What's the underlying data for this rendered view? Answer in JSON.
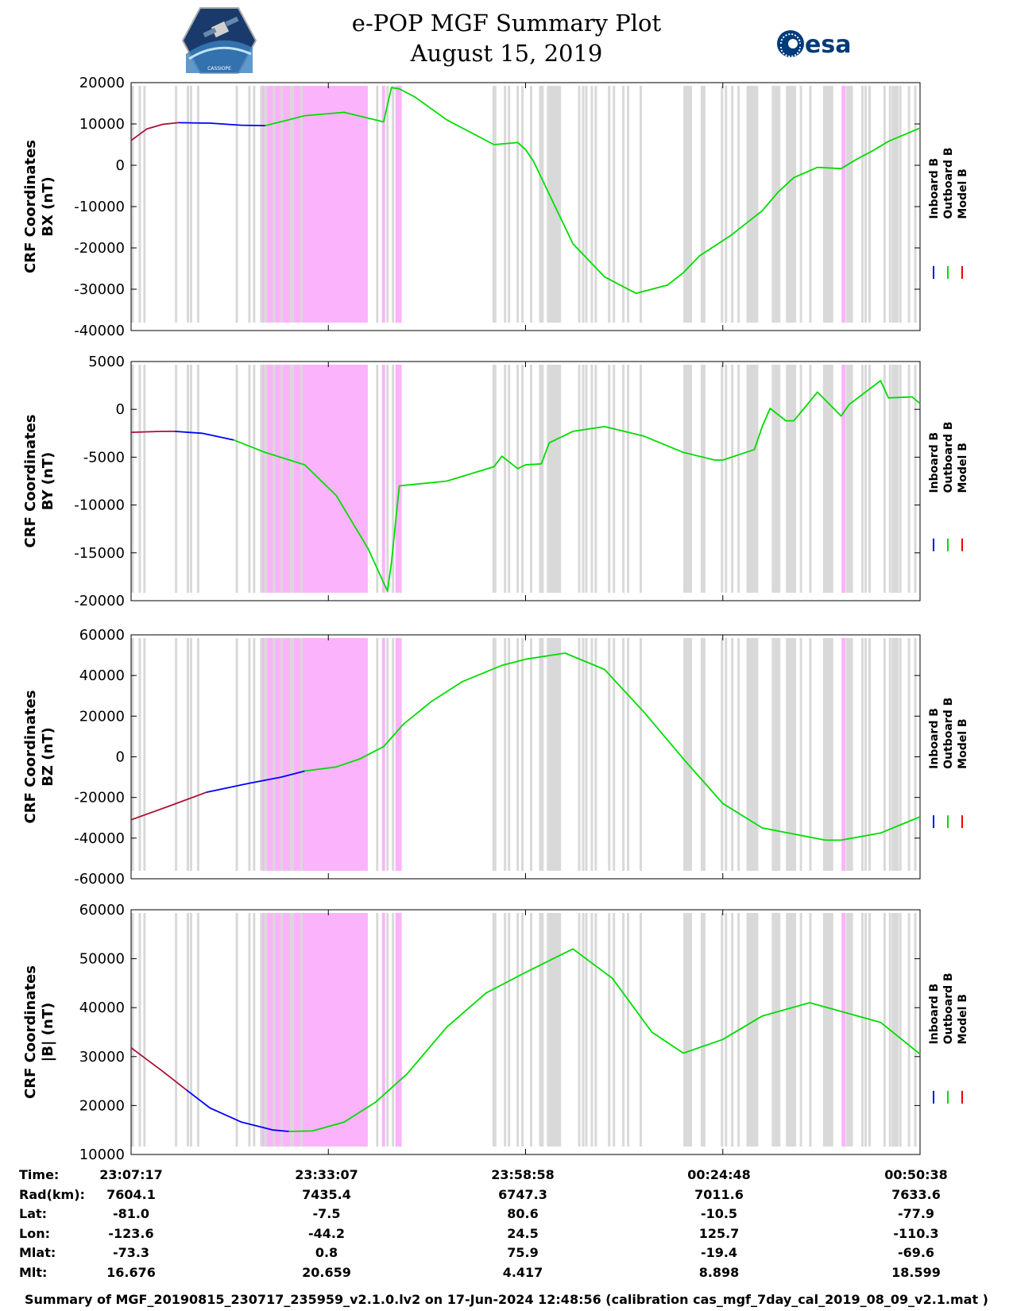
{
  "title": {
    "line1": "e-POP MGF Summary Plot",
    "line2": "August 15, 2019"
  },
  "logos": {
    "epop_caption": "CASSIOPE",
    "esa_text": "esa"
  },
  "legend": {
    "inboard": "Inboard B",
    "outboard": "Outboard B",
    "model": "Model B",
    "colors": {
      "inboard": "#0000ff",
      "outboard": "#00dd00",
      "model": "#ee0000"
    }
  },
  "colors": {
    "gray_band": "#d9d9d9",
    "magenta_band": "#fbb4fb",
    "model_trace": "#aa1133"
  },
  "chart_data": [
    {
      "type": "line",
      "id": "bx",
      "ylabel_line1": "CRF Coordinates",
      "ylabel_line2": "BX (nT)",
      "ylim": [
        -40000,
        20000
      ],
      "yticks": [
        20000,
        10000,
        0,
        -10000,
        -20000,
        -30000,
        -40000
      ],
      "ytick_labels": [
        "20000",
        "10000",
        "0",
        "-10000",
        "-20000",
        "-30000",
        "-40000"
      ],
      "series": [
        {
          "name": "Model B",
          "color": "model",
          "x": [
            0,
            0.02,
            0.04,
            0.06
          ],
          "y": [
            6000,
            8800,
            9900,
            10300
          ]
        },
        {
          "name": "Inboard B",
          "color": "inboard",
          "x": [
            0.06,
            0.1,
            0.14,
            0.17
          ],
          "y": [
            10300,
            10200,
            9700,
            9600
          ]
        },
        {
          "name": "Outboard B",
          "color": "outboard",
          "x": [
            0.17,
            0.2,
            0.22,
            0.27,
            0.32,
            0.33,
            0.34,
            0.36,
            0.4,
            0.46,
            0.49,
            0.5,
            0.51,
            0.52,
            0.53,
            0.54,
            0.55,
            0.56,
            0.6,
            0.64,
            0.68,
            0.7,
            0.72,
            0.76,
            0.8,
            0.82,
            0.84,
            0.87,
            0.9,
            0.92,
            0.94,
            0.96,
            1.0
          ],
          "y": [
            9600,
            11000,
            12000,
            12800,
            10500,
            18800,
            18500,
            16500,
            11000,
            5000,
            5500,
            3800,
            1000,
            -3000,
            -7000,
            -11000,
            -15000,
            -19000,
            -27000,
            -31000,
            -29000,
            -26000,
            -22000,
            -17000,
            -11000,
            -6500,
            -3000,
            -500,
            -800,
            1500,
            3500,
            5800,
            9000
          ]
        }
      ]
    },
    {
      "type": "line",
      "id": "by",
      "ylabel_line1": "CRF Coordinates",
      "ylabel_line2": "BY (nT)",
      "ylim": [
        -20000,
        5000
      ],
      "yticks": [
        5000,
        0,
        -5000,
        -10000,
        -15000,
        -20000
      ],
      "ytick_labels": [
        "5000",
        "0",
        "-5000",
        "-10000",
        "-15000",
        "-20000"
      ],
      "series": [
        {
          "name": "Model B",
          "color": "model",
          "x": [
            0,
            0.04,
            0.055
          ],
          "y": [
            -2400,
            -2300,
            -2300
          ]
        },
        {
          "name": "Inboard B",
          "color": "inboard",
          "x": [
            0.055,
            0.09,
            0.13
          ],
          "y": [
            -2300,
            -2500,
            -3200
          ]
        },
        {
          "name": "Outboard B",
          "color": "outboard",
          "x": [
            0.13,
            0.17,
            0.22,
            0.26,
            0.3,
            0.325,
            0.33,
            0.34,
            0.4,
            0.46,
            0.47,
            0.49,
            0.5,
            0.52,
            0.53,
            0.56,
            0.6,
            0.65,
            0.7,
            0.74,
            0.75,
            0.79,
            0.8,
            0.81,
            0.83,
            0.84,
            0.87,
            0.9,
            0.91,
            0.95,
            0.96,
            0.99,
            1.0
          ],
          "y": [
            -3200,
            -4500,
            -5800,
            -9000,
            -14500,
            -19000,
            -16000,
            -8000,
            -7500,
            -6000,
            -4900,
            -6200,
            -5800,
            -5700,
            -3500,
            -2300,
            -1800,
            -2800,
            -4500,
            -5300,
            -5300,
            -4200,
            -1800,
            100,
            -1200,
            -1200,
            1800,
            -700,
            500,
            3000,
            1200,
            1300,
            600
          ]
        }
      ]
    },
    {
      "type": "line",
      "id": "bz",
      "ylabel_line1": "CRF Coordinates",
      "ylabel_line2": "BZ (nT)",
      "ylim": [
        -60000,
        60000
      ],
      "yticks": [
        60000,
        40000,
        20000,
        0,
        -20000,
        -40000,
        -60000
      ],
      "ytick_labels": [
        "60000",
        "40000",
        "20000",
        "0",
        "-20000",
        "-40000",
        "-60000"
      ],
      "series": [
        {
          "name": "Model B",
          "color": "model",
          "x": [
            0,
            0.05,
            0.095
          ],
          "y": [
            -31000,
            -24000,
            -17500
          ]
        },
        {
          "name": "Inboard B",
          "color": "inboard",
          "x": [
            0.095,
            0.15,
            0.19,
            0.22
          ],
          "y": [
            -17500,
            -13000,
            -10000,
            -7000
          ]
        },
        {
          "name": "Outboard B",
          "color": "outboard",
          "x": [
            0.22,
            0.26,
            0.29,
            0.32,
            0.345,
            0.38,
            0.42,
            0.47,
            0.5,
            0.55,
            0.6,
            0.65,
            0.7,
            0.75,
            0.8,
            0.88,
            0.9,
            0.95,
            1.0
          ],
          "y": [
            -7000,
            -5000,
            -1000,
            5000,
            16000,
            27000,
            37000,
            45000,
            48000,
            51000,
            43000,
            22000,
            -1000,
            -23000,
            -35000,
            -41000,
            -41000,
            -37500,
            -29500
          ]
        }
      ]
    },
    {
      "type": "line",
      "id": "bmag",
      "ylabel_line1": "CRF Coordinates",
      "ylabel_line2": "|B| (nT)",
      "ylim": [
        10000,
        60000
      ],
      "yticks": [
        60000,
        50000,
        40000,
        30000,
        20000,
        10000
      ],
      "ytick_labels": [
        "60000",
        "50000",
        "40000",
        "30000",
        "20000",
        "10000"
      ],
      "series": [
        {
          "name": "Model B",
          "color": "model",
          "x": [
            0,
            0.04,
            0.07
          ],
          "y": [
            31800,
            27000,
            23200
          ]
        },
        {
          "name": "Inboard B",
          "color": "inboard",
          "x": [
            0.07,
            0.1,
            0.14,
            0.18,
            0.2
          ],
          "y": [
            23200,
            19500,
            16600,
            15000,
            14700
          ]
        },
        {
          "name": "Outboard B",
          "color": "outboard",
          "x": [
            0.2,
            0.23,
            0.27,
            0.31,
            0.35,
            0.4,
            0.45,
            0.5,
            0.56,
            0.61,
            0.66,
            0.7,
            0.75,
            0.8,
            0.86,
            0.95,
            1.0
          ],
          "y": [
            14700,
            14800,
            16600,
            20700,
            26500,
            36000,
            43000,
            47200,
            52000,
            46000,
            35000,
            30700,
            33500,
            38300,
            41000,
            37000,
            30500
          ]
        }
      ]
    }
  ],
  "bands": {
    "gray_lines": [
      0.002,
      0.011,
      0.017,
      0.057,
      0.072,
      0.076,
      0.085,
      0.134,
      0.15,
      0.156,
      0.165,
      0.17,
      0.474,
      0.479,
      0.49,
      0.496,
      0.507,
      0.533,
      0.568,
      0.573,
      0.577,
      0.584,
      0.589,
      0.606,
      0.612,
      0.624,
      0.63,
      0.646,
      0.749,
      0.754,
      0.762,
      0.77,
      0.849,
      0.861,
      0.903,
      0.927,
      0.931,
      0.936,
      0.955,
      0.962,
      0.968,
      0.975,
      0.986,
      0.994
    ],
    "gray_blocks": [
      [
        0.458,
        0.463
      ],
      [
        0.517,
        0.523
      ],
      [
        0.527,
        0.545
      ],
      [
        0.7,
        0.711
      ],
      [
        0.722,
        0.728
      ],
      [
        0.78,
        0.795
      ],
      [
        0.812,
        0.823
      ],
      [
        0.83,
        0.843
      ],
      [
        0.877,
        0.89
      ],
      [
        0.906,
        0.915
      ],
      [
        0.964,
        0.973
      ]
    ],
    "magenta_blocks": [
      [
        0.165,
        0.3
      ],
      [
        0.335,
        0.343
      ],
      [
        0.318,
        0.322
      ]
    ],
    "magenta_lines": [
      0.177,
      0.188,
      0.198,
      0.208,
      0.212,
      0.903
    ],
    "gray_in_magenta": [
      0.171,
      0.181,
      0.191,
      0.203,
      0.205,
      0.216,
      0.312,
      0.325,
      0.332
    ]
  },
  "time_axis": {
    "labels": [
      "Time:",
      "Rad(km):",
      "Lat:",
      "Lon:",
      "Mlat:",
      "Mlt:"
    ],
    "columns": [
      {
        "time": "23:07:17",
        "rad": "7604.1",
        "lat": "-81.0",
        "lon": "-123.6",
        "mlat": "-73.3",
        "mlt": "16.676"
      },
      {
        "time": "23:33:07",
        "rad": "7435.4",
        "lat": "-7.5",
        "lon": "-44.2",
        "mlat": "0.8",
        "mlt": "20.659"
      },
      {
        "time": "23:58:58",
        "rad": "6747.3",
        "lat": "80.6",
        "lon": "24.5",
        "mlat": "75.9",
        "mlt": "4.417"
      },
      {
        "time": "00:24:48",
        "rad": "7011.6",
        "lat": "-10.5",
        "lon": "125.7",
        "mlat": "-19.4",
        "mlt": "8.898"
      },
      {
        "time": "00:50:38",
        "rad": "7633.6",
        "lat": "-77.9",
        "lon": "-110.3",
        "mlat": "-69.6",
        "mlt": "18.599"
      }
    ]
  },
  "footer": "Summary of MGF_20190815_230717_235959_v2.1.0.lv2 on 17-Jun-2024 12:48:56 (calibration cas_mgf_7day_cal_2019_08_09_v2.1.mat )"
}
